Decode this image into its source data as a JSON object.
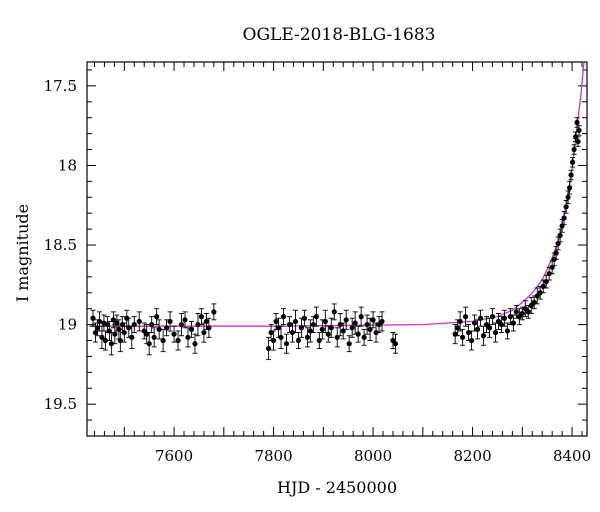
{
  "chart_data": {
    "type": "scatter",
    "title": "OGLE-2018-BLG-1683",
    "xlabel": "HJD - 2450000",
    "ylabel": "I magnitude",
    "xlim": [
      7425,
      8430
    ],
    "ylim": [
      19.7,
      17.35
    ],
    "y_inverted": true,
    "x_ticks": [
      7600,
      7800,
      8000,
      8200,
      8400
    ],
    "y_ticks": [
      17.5,
      18,
      18.5,
      19,
      19.5
    ],
    "grid": false,
    "colors": {
      "points": "#000000",
      "model": "#cc33cc"
    },
    "series": [
      {
        "name": "",
        "style": "points-with-errorbars",
        "x": [
          7437,
          7442,
          7446,
          7450,
          7455,
          7459,
          7462,
          7466,
          7470,
          7474,
          7478,
          7481,
          7485,
          7489,
          7492,
          7496,
          7500,
          7505,
          7509,
          7515,
          7520,
          7530,
          7540,
          7545,
          7550,
          7555,
          7560,
          7565,
          7570,
          7578,
          7585,
          7592,
          7600,
          7608,
          7615,
          7622,
          7628,
          7635,
          7642,
          7648,
          7655,
          7660,
          7665,
          7670,
          7680,
          7790,
          7795,
          7800,
          7805,
          7810,
          7815,
          7820,
          7826,
          7832,
          7838,
          7844,
          7850,
          7856,
          7862,
          7868,
          7874,
          7880,
          7886,
          7892,
          7898,
          7904,
          7910,
          7916,
          7922,
          7928,
          7934,
          7940,
          7946,
          7952,
          7958,
          7964,
          7970,
          7976,
          7982,
          7988,
          7994,
          8000,
          8006,
          8012,
          8018,
          8040,
          8045,
          8165,
          8170,
          8175,
          8180,
          8186,
          8192,
          8198,
          8204,
          8210,
          8216,
          8222,
          8228,
          8234,
          8240,
          8246,
          8252,
          8258,
          8264,
          8270,
          8276,
          8282,
          8288,
          8294,
          8300,
          8306,
          8312,
          8318,
          8324,
          8330,
          8336,
          8342,
          8348,
          8354,
          8360,
          8364,
          8368,
          8372,
          8376,
          8380,
          8384,
          8388,
          8392,
          8395,
          8398,
          8401,
          8404,
          8407,
          8410,
          8412,
          8414
        ],
        "y": [
          18.96,
          19.05,
          19.02,
          18.98,
          19.08,
          18.99,
          19.1,
          19.0,
          19.04,
          19.12,
          18.97,
          19.06,
          18.99,
          19.03,
          19.1,
          19.0,
          19.05,
          18.96,
          19.02,
          19.08,
          19.0,
          18.98,
          19.04,
          19.06,
          19.12,
          19.0,
          19.08,
          18.95,
          19.03,
          19.1,
          19.02,
          18.98,
          19.06,
          19.1,
          19.0,
          18.97,
          19.08,
          19.03,
          19.12,
          19.0,
          18.95,
          19.05,
          18.98,
          19.02,
          18.92,
          19.15,
          19.05,
          19.1,
          18.98,
          19.02,
          19.08,
          18.95,
          19.12,
          19.0,
          19.05,
          18.98,
          19.1,
          19.02,
          18.96,
          19.08,
          19.04,
          19.0,
          18.95,
          19.1,
          19.03,
          18.98,
          19.06,
          19.02,
          18.92,
          19.08,
          19.0,
          19.04,
          18.97,
          19.12,
          19.02,
          18.99,
          19.06,
          18.95,
          19.08,
          19.0,
          19.03,
          18.97,
          19.05,
          19.0,
          18.98,
          19.1,
          19.12,
          19.06,
          19.02,
          18.98,
          19.08,
          18.95,
          19.05,
          19.1,
          18.99,
          19.03,
          18.96,
          19.07,
          19.0,
          19.02,
          18.95,
          19.05,
          18.98,
          19.0,
          18.96,
          19.04,
          18.95,
          18.99,
          18.92,
          18.95,
          18.93,
          18.9,
          18.92,
          18.88,
          18.86,
          18.82,
          18.8,
          18.76,
          18.73,
          18.68,
          18.64,
          18.59,
          18.55,
          18.49,
          18.44,
          18.38,
          18.33,
          18.26,
          18.2,
          18.14,
          18.06,
          17.98,
          17.9,
          17.82,
          17.73,
          17.85,
          17.78
        ],
        "yerr": [
          0.05,
          0.06,
          0.05,
          0.06,
          0.07,
          0.05,
          0.06,
          0.05,
          0.06,
          0.07,
          0.05,
          0.06,
          0.05,
          0.06,
          0.07,
          0.05,
          0.06,
          0.05,
          0.06,
          0.07,
          0.05,
          0.06,
          0.05,
          0.06,
          0.07,
          0.05,
          0.06,
          0.05,
          0.06,
          0.07,
          0.05,
          0.06,
          0.05,
          0.06,
          0.07,
          0.05,
          0.06,
          0.05,
          0.06,
          0.07,
          0.05,
          0.06,
          0.05,
          0.06,
          0.05,
          0.07,
          0.05,
          0.06,
          0.05,
          0.06,
          0.07,
          0.05,
          0.06,
          0.05,
          0.06,
          0.07,
          0.05,
          0.06,
          0.05,
          0.06,
          0.07,
          0.05,
          0.06,
          0.05,
          0.06,
          0.07,
          0.05,
          0.06,
          0.05,
          0.06,
          0.07,
          0.05,
          0.06,
          0.05,
          0.06,
          0.07,
          0.05,
          0.06,
          0.05,
          0.06,
          0.07,
          0.05,
          0.06,
          0.05,
          0.06,
          0.05,
          0.06,
          0.06,
          0.05,
          0.06,
          0.05,
          0.06,
          0.05,
          0.06,
          0.05,
          0.06,
          0.05,
          0.06,
          0.05,
          0.06,
          0.05,
          0.06,
          0.05,
          0.05,
          0.05,
          0.05,
          0.05,
          0.05,
          0.04,
          0.05,
          0.04,
          0.05,
          0.04,
          0.05,
          0.04,
          0.05,
          0.04,
          0.04,
          0.04,
          0.04,
          0.04,
          0.04,
          0.04,
          0.04,
          0.04,
          0.04,
          0.04,
          0.04,
          0.04,
          0.04,
          0.03,
          0.03,
          0.03,
          0.03,
          0.03,
          0.03,
          0.03
        ]
      },
      {
        "name": "",
        "style": "model-line",
        "x": [
          7430,
          7800,
          8100,
          8200,
          8250,
          8280,
          8300,
          8320,
          8340,
          8360,
          8375,
          8390,
          8400,
          8410,
          8418,
          8424
        ],
        "y": [
          19.01,
          19.01,
          19.0,
          18.98,
          18.95,
          18.91,
          18.86,
          18.8,
          18.72,
          18.58,
          18.45,
          18.22,
          18.02,
          17.76,
          17.55,
          17.35
        ]
      }
    ]
  }
}
